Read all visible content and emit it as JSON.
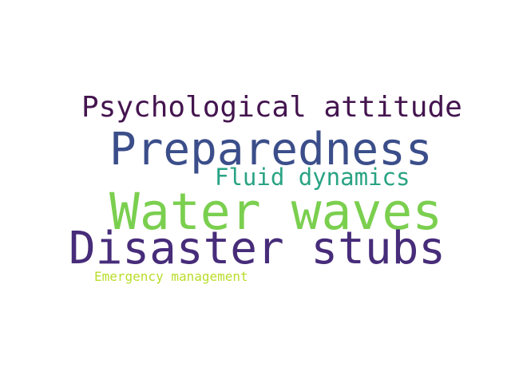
{
  "words": [
    {
      "text": "Psychological attitude",
      "color": "#44154f"
    },
    {
      "text": "Preparedness",
      "color": "#3b4e8a"
    },
    {
      "text": "Fluid dynamics",
      "color": "#29a383"
    },
    {
      "text": "Water waves",
      "color": "#7bcf4f"
    },
    {
      "text": "Disaster stubs",
      "color": "#472c7a"
    },
    {
      "text": "Emergency management",
      "color": "#b8dd2b"
    }
  ]
}
